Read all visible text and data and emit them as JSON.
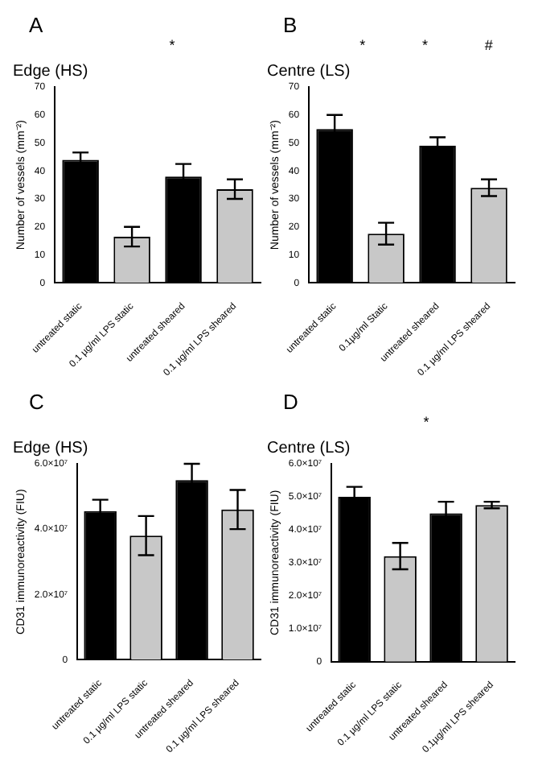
{
  "chart_data": [
    {
      "type": "bar",
      "title": "Edge (HS)",
      "ylabel": "Number of vessels (mm⁻²)",
      "categories": [
        "untreated static",
        "0.1 µg/ml LPS static",
        "untreated sheared",
        "0.1 µg/ml LPS sheared"
      ],
      "values": [
        44,
        16.5,
        38,
        33.5
      ],
      "errors": [
        2.6,
        3.5,
        4.5,
        3.5
      ],
      "colors": [
        "#000000",
        "#c8c8c8",
        "#000000",
        "#c8c8c8"
      ],
      "ylim": [
        0,
        70
      ],
      "yticks": [
        0,
        10,
        20,
        30,
        40,
        50,
        60,
        70
      ],
      "annotations": [
        "A",
        "*"
      ]
    },
    {
      "type": "bar",
      "title": "Centre (LS)",
      "ylabel": "Number of vessels (mm⁻²)",
      "categories": [
        "untreated static",
        "0.1µg/ml Static",
        "untreated sheared",
        "0.1 µg/ml LPS sheared"
      ],
      "values": [
        55,
        17.6,
        49,
        34
      ],
      "errors": [
        5,
        3.9,
        3,
        3
      ],
      "colors": [
        "#000000",
        "#c8c8c8",
        "#000000",
        "#c8c8c8"
      ],
      "ylim": [
        0,
        70
      ],
      "yticks": [
        0,
        10,
        20,
        30,
        40,
        50,
        60,
        70
      ],
      "annotations": [
        "B",
        "*",
        "*",
        "#"
      ]
    },
    {
      "type": "bar",
      "title": "Edge (HS)",
      "ylabel": "CD31 immunoreactivity (FIU)",
      "categories": [
        "untreated static",
        "0.1 µg/ml LPS static",
        "untreated sheared",
        "0.1 µg/ml LPS sheared"
      ],
      "values": [
        45500000,
        38000000,
        55000000,
        46000000
      ],
      "errors": [
        3500000,
        6000000,
        5000000,
        6000000
      ],
      "colors": [
        "#000000",
        "#c8c8c8",
        "#000000",
        "#c8c8c8"
      ],
      "ylim": [
        0,
        60000000
      ],
      "yticks": [
        0,
        {
          "value": 20000000,
          "label": "2.0×10⁷"
        },
        {
          "value": 40000000,
          "label": "4.0×10⁷"
        },
        {
          "value": 60000000,
          "label": "6.0×10⁷"
        }
      ],
      "annotations": [
        "C"
      ]
    },
    {
      "type": "bar",
      "title": "Centre (LS)",
      "ylabel": "CD31 immunoreactivity (FIU)",
      "categories": [
        "untreated static",
        "0.1 µg/ml LPS static",
        "untreated sheared",
        "0.1µg/ml LPS sheared"
      ],
      "values": [
        50000000,
        32000000,
        45000000,
        47500000
      ],
      "errors": [
        3000000,
        4000000,
        3500000,
        1000000
      ],
      "colors": [
        "#000000",
        "#c8c8c8",
        "#000000",
        "#c8c8c8"
      ],
      "ylim": [
        0,
        60000000
      ],
      "yticks": [
        0,
        {
          "value": 10000000,
          "label": "1.0×10⁷"
        },
        {
          "value": 20000000,
          "label": "2.0×10⁷"
        },
        {
          "value": 30000000,
          "label": "3.0×10⁷"
        },
        {
          "value": 40000000,
          "label": "4.0×10⁷"
        },
        {
          "value": 50000000,
          "label": "5.0×10⁷"
        },
        {
          "value": 60000000,
          "label": "6.0×10⁷"
        }
      ],
      "annotations": [
        "D",
        "*"
      ]
    }
  ]
}
